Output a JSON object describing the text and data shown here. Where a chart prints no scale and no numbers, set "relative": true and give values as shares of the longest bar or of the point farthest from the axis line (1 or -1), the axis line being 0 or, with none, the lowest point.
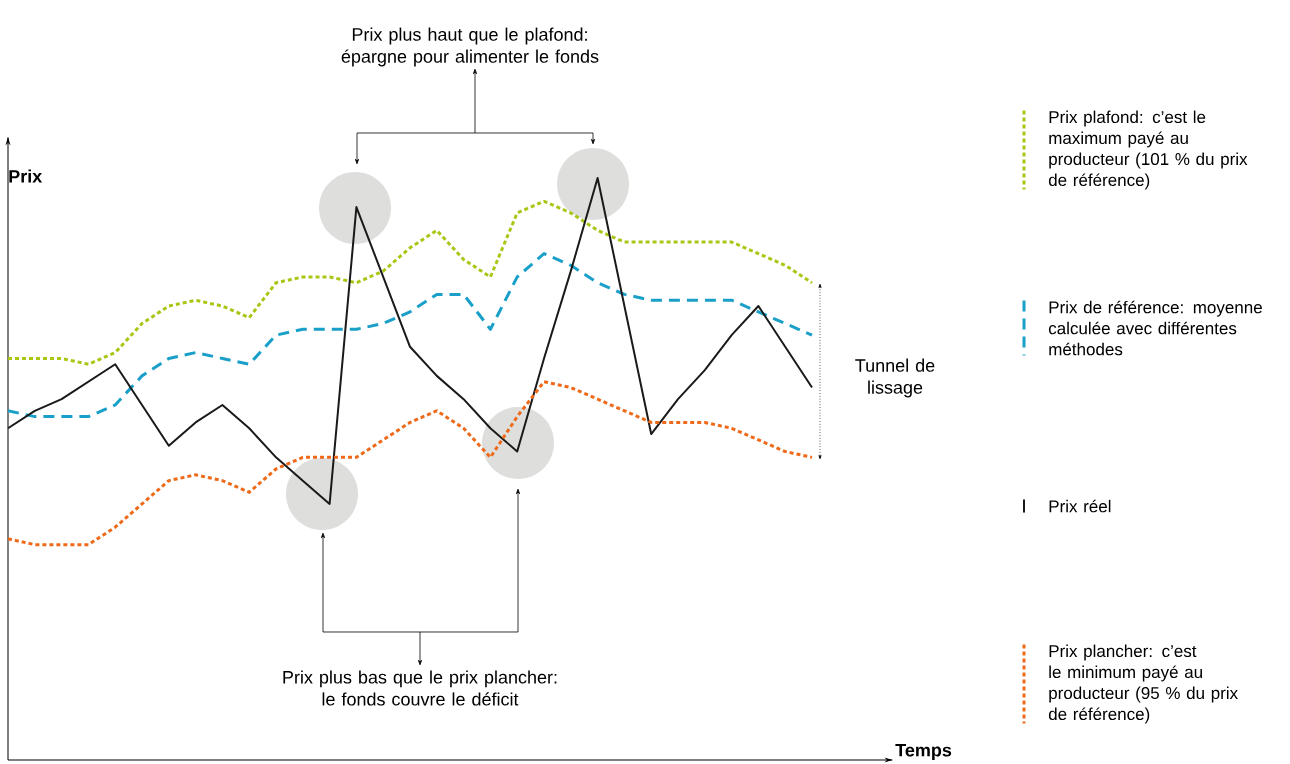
{
  "chart_data": {
    "type": "line",
    "relative": true,
    "xlabel": "Temps",
    "ylabel": "Prix",
    "legend": "right",
    "categories": [
      null,
      null,
      null,
      null,
      null,
      null,
      null,
      null,
      null,
      null,
      null,
      null,
      null,
      null,
      null,
      null,
      null,
      null,
      null,
      null,
      null,
      null,
      null,
      null,
      null,
      null,
      null,
      null,
      null,
      null,
      null
    ],
    "series": [
      {
        "name": "Prix plafond: c’est le maximum payé au producteur (101 % du prix de référence)",
        "color": "#a9c614",
        "line_style": "dotted",
        "values": [
          0.69,
          0.69,
          0.69,
          0.68,
          0.7,
          0.75,
          0.78,
          0.79,
          0.78,
          0.76,
          0.82,
          0.83,
          0.83,
          0.82,
          0.84,
          0.88,
          0.91,
          0.86,
          0.83,
          0.94,
          0.96,
          0.94,
          0.91,
          0.89,
          0.89,
          0.89,
          0.89,
          0.89,
          0.87,
          0.85,
          0.82
        ]
      },
      {
        "name": "Prix de référence: moyenne calculée avec différentes méthodes",
        "color": "#1aa0c8",
        "line_style": "dashed",
        "values": [
          0.6,
          0.59,
          0.59,
          0.59,
          0.61,
          0.66,
          0.69,
          0.7,
          0.69,
          0.68,
          0.73,
          0.74,
          0.74,
          0.74,
          0.75,
          0.77,
          0.8,
          0.8,
          0.74,
          0.83,
          0.87,
          0.85,
          0.82,
          0.8,
          0.79,
          0.79,
          0.79,
          0.79,
          0.77,
          0.75,
          0.73
        ]
      },
      {
        "name": "Prix réel",
        "color": "#1a1a1a",
        "line_style": "solid",
        "values": [
          0.57,
          0.6,
          0.62,
          0.65,
          0.68,
          0.61,
          0.54,
          0.58,
          0.61,
          0.57,
          0.52,
          0.48,
          0.44,
          0.95,
          0.83,
          0.71,
          0.66,
          0.62,
          0.57,
          0.53,
          0.69,
          0.84,
          1.0,
          0.78,
          0.56,
          0.62,
          0.67,
          0.73,
          0.78,
          0.71,
          0.64
        ]
      },
      {
        "name": "Prix plancher: c’est le minimum payé au producteur (95 % du prix de référence)",
        "color": "#ee6a1a",
        "line_style": "dotted",
        "values": [
          0.38,
          0.37,
          0.37,
          0.37,
          0.4,
          0.44,
          0.48,
          0.49,
          0.48,
          0.46,
          0.5,
          0.52,
          0.52,
          0.52,
          0.55,
          0.58,
          0.6,
          0.57,
          0.52,
          0.59,
          0.65,
          0.64,
          0.62,
          0.6,
          0.58,
          0.58,
          0.58,
          0.57,
          0.55,
          0.53,
          0.52
        ]
      }
    ],
    "annotations": [
      "Prix plus haut que le plafond: épargne pour alimenter le fonds",
      "Prix plus bas que le prix plancher: le fonds couvre le déficit",
      "Tunnel de lissage"
    ]
  }
}
